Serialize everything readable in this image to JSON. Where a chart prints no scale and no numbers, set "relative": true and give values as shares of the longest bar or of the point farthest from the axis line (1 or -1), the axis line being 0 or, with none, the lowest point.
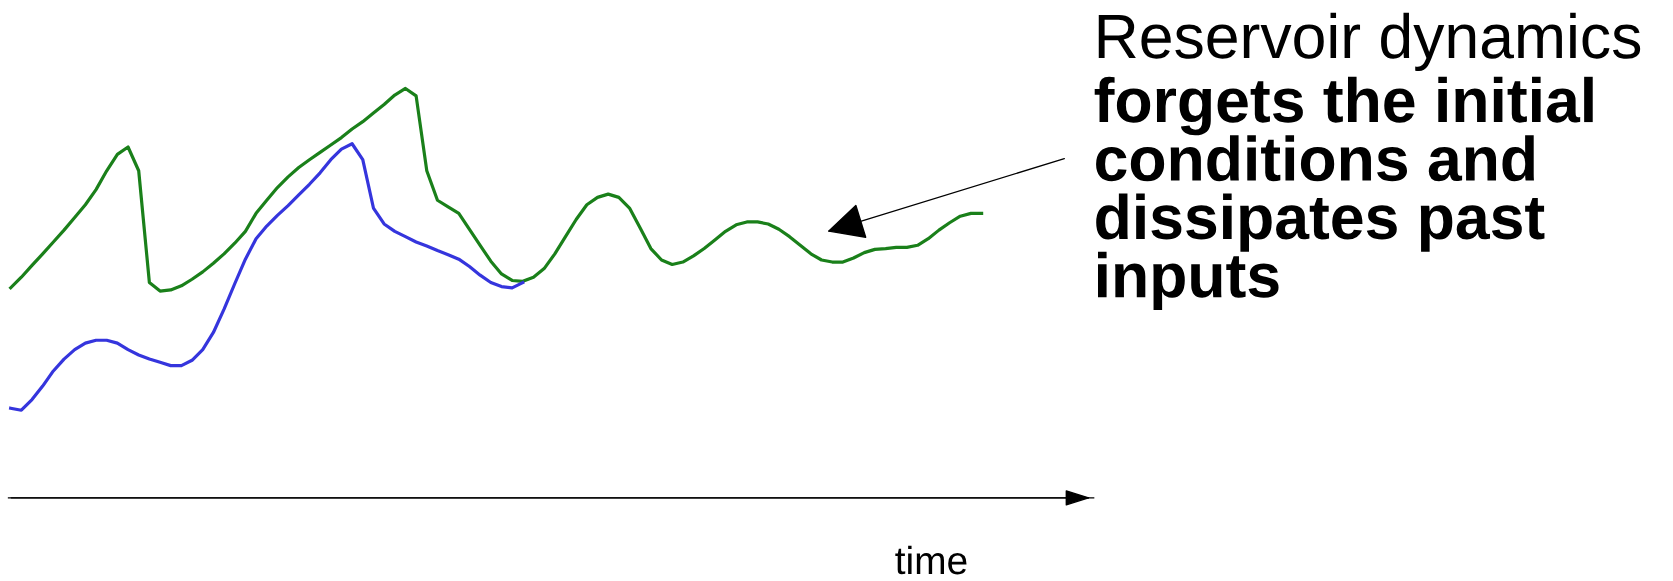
{
  "chart_data": {
    "type": "line",
    "relative": true,
    "xlabel": "time",
    "categories": [
      null,
      null,
      null,
      null,
      null,
      null,
      null,
      null,
      null,
      null,
      null,
      null,
      null,
      null,
      null,
      null,
      null,
      null,
      null,
      null,
      null,
      null,
      null,
      null,
      null,
      null,
      null,
      null,
      null,
      null,
      null,
      null,
      null,
      null,
      null,
      null,
      null,
      null,
      null,
      null,
      null,
      null,
      null,
      null,
      null,
      null,
      null,
      null,
      null,
      null,
      null,
      null,
      null,
      null,
      null,
      null,
      null,
      null,
      null,
      null,
      null,
      null,
      null,
      null,
      null,
      null,
      null,
      null,
      null,
      null,
      null,
      null,
      null,
      null,
      null,
      null,
      null,
      null,
      null,
      null,
      null,
      null,
      null,
      null,
      null,
      null,
      null,
      null,
      null,
      null,
      null,
      null
    ],
    "series": [
      {
        "color": "#1a801a",
        "values": [
          0.513,
          0.539,
          0.568,
          0.596,
          0.625,
          0.654,
          0.685,
          0.716,
          0.753,
          0.799,
          0.839,
          0.857,
          0.799,
          0.526,
          0.505,
          0.508,
          0.518,
          0.534,
          0.552,
          0.573,
          0.596,
          0.622,
          0.651,
          0.695,
          0.727,
          0.758,
          0.784,
          0.807,
          0.826,
          0.844,
          0.862,
          0.88,
          0.901,
          0.919,
          0.94,
          0.961,
          0.984,
          1,
          0.982,
          0.799,
          0.727,
          0.711,
          0.695,
          0.656,
          0.617,
          0.578,
          0.547,
          0.531,
          0.529,
          0.539,
          0.56,
          0.596,
          0.638,
          0.68,
          0.716,
          0.734,
          0.742,
          0.734,
          0.708,
          0.659,
          0.609,
          0.581,
          0.57,
          0.576,
          0.591,
          0.609,
          0.63,
          0.651,
          0.667,
          0.674,
          0.674,
          0.669,
          0.656,
          0.638,
          0.617,
          0.596,
          0.581,
          0.576,
          0.576,
          0.586,
          0.599,
          0.607,
          0.609,
          0.612,
          0.612,
          0.617,
          0.633,
          0.654,
          0.672,
          0.688,
          0.695,
          0.695
        ]
      },
      {
        "color": "#3535dd",
        "values": [
          0.219,
          0.214,
          0.24,
          0.273,
          0.31,
          0.339,
          0.362,
          0.378,
          0.385,
          0.385,
          0.378,
          0.362,
          0.349,
          0.339,
          0.331,
          0.323,
          0.323,
          0.336,
          0.362,
          0.404,
          0.461,
          0.523,
          0.583,
          0.633,
          0.664,
          0.69,
          0.714,
          0.74,
          0.766,
          0.794,
          0.826,
          0.852,
          0.865,
          0.826,
          0.708,
          0.669,
          0.651,
          0.638,
          0.625,
          0.615,
          0.604,
          0.594,
          0.583,
          0.565,
          0.544,
          0.526,
          0.516,
          0.513,
          0.526,
          null,
          null,
          null,
          null,
          null,
          null,
          null,
          null,
          null,
          null,
          null,
          null,
          null,
          null,
          null,
          null,
          null,
          null,
          null,
          null,
          null,
          null,
          null,
          null,
          null,
          null,
          null,
          null,
          null,
          null,
          null,
          null,
          null,
          null,
          null,
          null,
          null,
          null,
          null,
          null,
          null,
          null,
          null
        ]
      }
    ],
    "annotations": [
      "Reservoir dynamics",
      "forgets the initial conditions and dissipates past inputs"
    ]
  }
}
